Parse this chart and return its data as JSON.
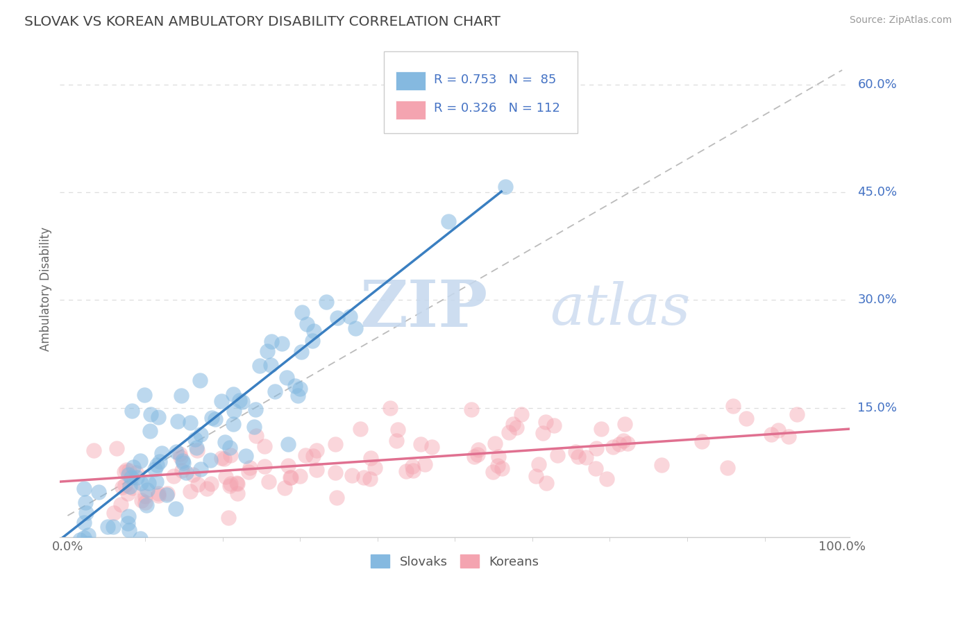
{
  "title": "SLOVAK VS KOREAN AMBULATORY DISABILITY CORRELATION CHART",
  "source": "Source: ZipAtlas.com",
  "ylabel": "Ambulatory Disability",
  "x_min": 0.0,
  "x_max": 1.0,
  "y_min": -0.03,
  "y_max": 0.66,
  "y_ticks_right": [
    0.15,
    0.3,
    0.45,
    0.6
  ],
  "y_tick_labels_right": [
    "15.0%",
    "30.0%",
    "45.0%",
    "60.0%"
  ],
  "slovak_color": "#85b9e0",
  "korean_color": "#f4a4b0",
  "slovak_R": 0.753,
  "slovak_N": 85,
  "korean_R": 0.326,
  "korean_N": 112,
  "slovak_line_color": "#3a7fc1",
  "korean_line_color": "#e07090",
  "ref_line_color": "#bbbbbb",
  "background_color": "#ffffff",
  "grid_color": "#dddddd",
  "title_color": "#444444",
  "axis_label_color": "#4472c4",
  "tick_text_color": "#666666",
  "watermark_color": "#dce8f5",
  "slovak_line_slope": 0.85,
  "slovak_line_intercept": -0.025,
  "slovak_line_x_end": 0.56,
  "korean_line_slope": 0.072,
  "korean_line_intercept": 0.048,
  "ref_line_slope": 0.62
}
